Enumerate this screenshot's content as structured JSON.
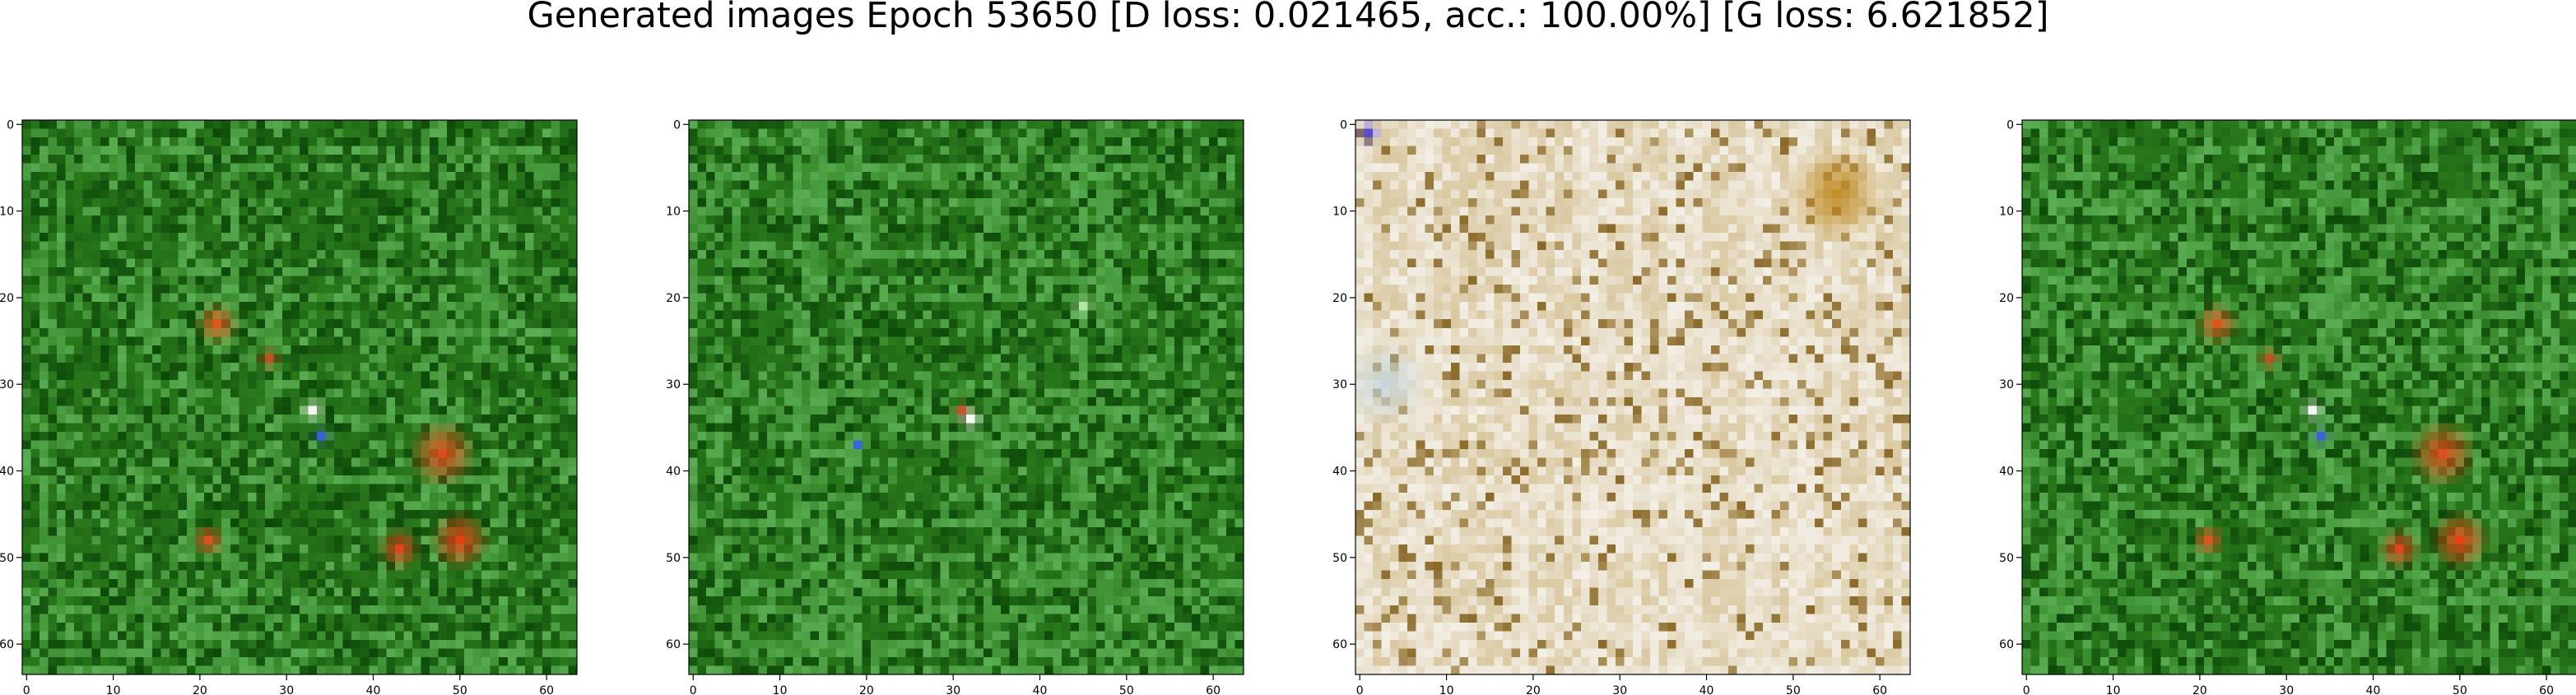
{
  "figure": {
    "title": "Generated images Epoch 53650 [D loss: 0.021465, acc.: 100.00%] [G loss: 6.621852]"
  },
  "chart_data": [
    {
      "type": "heatmap",
      "title": "",
      "xlabel": "",
      "ylabel": "",
      "xlim": [
        -0.5,
        63.5
      ],
      "ylim": [
        63.5,
        -0.5
      ],
      "xticks": [
        0,
        10,
        20,
        30,
        40,
        50,
        60
      ],
      "yticks": [
        0,
        10,
        20,
        30,
        40,
        50,
        60
      ],
      "grid": false,
      "image": {
        "width": 64,
        "height": 64,
        "palette": "green",
        "base_color": "#2a7a1c",
        "dark_color": "#0d4a0a",
        "light_color": "#6fc46a",
        "blobs": [
          {
            "x": 22,
            "y": 23,
            "r": 2.5,
            "color": "#e8551f"
          },
          {
            "x": 48,
            "y": 38,
            "r": 4,
            "color": "#e8481a"
          },
          {
            "x": 50,
            "y": 48,
            "r": 3.5,
            "color": "#ee3f15"
          },
          {
            "x": 43,
            "y": 49,
            "r": 2.5,
            "color": "#e8451a"
          },
          {
            "x": 21,
            "y": 48,
            "r": 2,
            "color": "#e25020"
          },
          {
            "x": 33,
            "y": 33,
            "r": 1.5,
            "color": "#ffffff"
          },
          {
            "x": 34,
            "y": 36,
            "r": 1.2,
            "color": "#3c5fe0"
          },
          {
            "x": 28,
            "y": 27,
            "r": 1.5,
            "color": "#c05020"
          }
        ]
      }
    },
    {
      "type": "heatmap",
      "title": "",
      "xlabel": "",
      "ylabel": "",
      "xlim": [
        -0.5,
        63.5
      ],
      "ylim": [
        63.5,
        -0.5
      ],
      "xticks": [
        0,
        10,
        20,
        30,
        40,
        50,
        60
      ],
      "yticks": [
        0,
        10,
        20,
        30,
        40,
        50,
        60
      ],
      "grid": false,
      "image": {
        "width": 64,
        "height": 64,
        "palette": "green",
        "base_color": "#2a7a1c",
        "dark_color": "#0d4a0a",
        "light_color": "#6fc46a",
        "blobs": [
          {
            "x": 32,
            "y": 34,
            "r": 1.5,
            "color": "#ffffff"
          },
          {
            "x": 31,
            "y": 33,
            "r": 1.2,
            "color": "#d05030"
          },
          {
            "x": 19,
            "y": 37,
            "r": 1,
            "color": "#3c5fe0"
          },
          {
            "x": 45,
            "y": 21,
            "r": 1.5,
            "color": "#b8e8a8"
          }
        ]
      }
    },
    {
      "type": "heatmap",
      "title": "",
      "xlabel": "",
      "ylabel": "",
      "xlim": [
        -0.5,
        63.5
      ],
      "ylim": [
        63.5,
        -0.5
      ],
      "xticks": [
        0,
        10,
        20,
        30,
        40,
        50,
        60
      ],
      "yticks": [
        0,
        10,
        20,
        30,
        40,
        50,
        60
      ],
      "grid": false,
      "image": {
        "width": 64,
        "height": 64,
        "palette": "tan",
        "base_color": "#d9c8a0",
        "dark_color": "#8a6a2a",
        "light_color": "#f3efe6",
        "blobs": [
          {
            "x": 55,
            "y": 8,
            "r": 6,
            "color": "#c08a20"
          },
          {
            "x": 3,
            "y": 30,
            "r": 5,
            "color": "#c6d6dc"
          },
          {
            "x": 1,
            "y": 1,
            "r": 1.5,
            "color": "#5a4ad0"
          }
        ]
      }
    },
    {
      "type": "heatmap",
      "title": "",
      "xlabel": "",
      "ylabel": "",
      "xlim": [
        -0.5,
        63.5
      ],
      "ylim": [
        63.5,
        -0.5
      ],
      "xticks": [
        0,
        10,
        20,
        30,
        40,
        50,
        60
      ],
      "yticks": [
        0,
        10,
        20,
        30,
        40,
        50,
        60
      ],
      "grid": false,
      "image": {
        "width": 64,
        "height": 64,
        "palette": "green",
        "base_color": "#2a7a1c",
        "dark_color": "#0d4a0a",
        "light_color": "#6fc46a",
        "blobs": [
          {
            "x": 22,
            "y": 23,
            "r": 2.5,
            "color": "#e8551f"
          },
          {
            "x": 48,
            "y": 38,
            "r": 4,
            "color": "#e8481a"
          },
          {
            "x": 50,
            "y": 48,
            "r": 3.5,
            "color": "#ee3f15"
          },
          {
            "x": 43,
            "y": 49,
            "r": 2.5,
            "color": "#e8451a"
          },
          {
            "x": 21,
            "y": 48,
            "r": 2,
            "color": "#e25020"
          },
          {
            "x": 33,
            "y": 33,
            "r": 1.5,
            "color": "#ffffff"
          },
          {
            "x": 34,
            "y": 36,
            "r": 1.2,
            "color": "#3c5fe0"
          },
          {
            "x": 28,
            "y": 27,
            "r": 1.5,
            "color": "#c05020"
          }
        ]
      }
    }
  ]
}
